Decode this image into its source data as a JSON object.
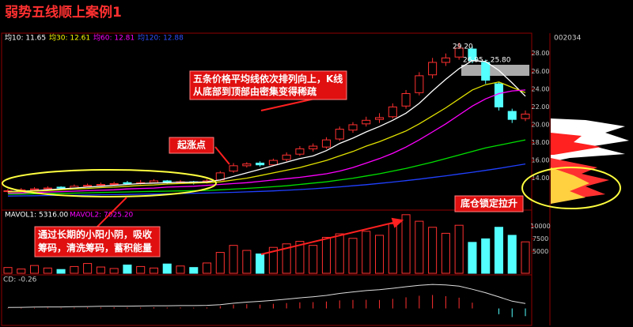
{
  "chart_data": {
    "type": "candlestick",
    "title": "弱势五线顺上案例1",
    "stock_code": "002034",
    "ma_labels": [
      {
        "text": "均10: 11.65",
        "color": "#ffffff"
      },
      {
        "text": "均30: 12.61",
        "color": "#ffff00"
      },
      {
        "text": "均60: 12.81",
        "color": "#ff00ff"
      },
      {
        "text": "均120: 12.88",
        "color": "#3050ff"
      }
    ],
    "annotations": [
      "五条价格平均线依次排列向上，K线从底部到顶部由密集变得稀疏",
      "起涨点",
      "通过长期的小阳小阴，吸收筹码，清洗筹码，蓄积能量",
      "底仓锁定拉升"
    ],
    "price_marks": [
      "29.20",
      "26.95 - 25.80"
    ],
    "open": [
      12.5,
      12.6,
      12.7,
      12.8,
      13.0,
      12.9,
      13.1,
      13.2,
      13.3,
      13.5,
      13.4,
      13.5,
      13.7,
      13.5,
      13.6,
      13.5,
      13.8,
      14.8,
      15.4,
      15.7,
      15.5,
      16.1,
      16.7,
      17.3,
      17.5,
      18.4,
      19.4,
      20.1,
      20.6,
      20.9,
      22.1,
      23.6,
      25.6,
      27.0,
      27.6,
      28.5,
      27.0,
      24.6,
      21.5,
      20.7
    ],
    "close": [
      12.6,
      12.7,
      12.8,
      12.9,
      12.9,
      13.1,
      13.2,
      13.3,
      13.4,
      13.4,
      13.5,
      13.7,
      13.5,
      13.6,
      13.5,
      13.7,
      14.6,
      15.4,
      15.6,
      15.5,
      16.0,
      16.6,
      17.3,
      17.6,
      18.3,
      19.5,
      20.0,
      20.5,
      20.8,
      22.0,
      23.5,
      25.5,
      27.0,
      27.5,
      28.6,
      27.2,
      25.0,
      22.0,
      20.6,
      21.2
    ],
    "high": [
      12.8,
      12.9,
      13.0,
      13.1,
      13.1,
      13.3,
      13.4,
      13.5,
      13.6,
      13.7,
      13.8,
      13.9,
      13.8,
      13.8,
      13.7,
      13.9,
      14.8,
      15.7,
      15.8,
      15.9,
      16.2,
      16.9,
      17.6,
      17.9,
      18.6,
      19.8,
      20.3,
      20.9,
      21.3,
      22.4,
      23.9,
      25.9,
      27.5,
      28.0,
      29.2,
      28.8,
      27.3,
      24.8,
      21.8,
      21.6
    ],
    "low": [
      12.4,
      12.5,
      12.6,
      12.7,
      12.8,
      12.8,
      13.0,
      13.1,
      13.2,
      13.3,
      13.3,
      13.4,
      13.4,
      13.4,
      13.3,
      13.4,
      13.7,
      14.6,
      15.2,
      15.3,
      15.4,
      15.9,
      16.5,
      17.0,
      17.3,
      18.2,
      19.1,
      19.8,
      20.2,
      20.7,
      21.8,
      23.3,
      25.2,
      26.6,
      27.3,
      26.9,
      24.6,
      21.6,
      20.2,
      20.4
    ],
    "ma": [
      {
        "color": "#ffffff",
        "values": [
          12.5,
          12.55,
          12.6,
          12.7,
          12.8,
          12.9,
          13.0,
          13.1,
          13.2,
          13.3,
          13.4,
          13.45,
          13.5,
          13.55,
          13.55,
          13.6,
          13.8,
          14.2,
          14.6,
          15.0,
          15.4,
          15.8,
          16.2,
          16.5,
          17.1,
          17.9,
          18.5,
          19.2,
          19.8,
          20.5,
          21.3,
          22.4,
          23.8,
          25.1,
          26.3,
          27.2,
          27.1,
          26.1,
          24.7,
          23.2
        ]
      },
      {
        "color": "#e0e000",
        "values": [
          12.45,
          12.5,
          12.55,
          12.6,
          12.7,
          12.8,
          12.85,
          12.95,
          13.0,
          13.1,
          13.2,
          13.25,
          13.35,
          13.4,
          13.45,
          13.5,
          13.6,
          13.8,
          14.0,
          14.3,
          14.6,
          14.9,
          15.2,
          15.6,
          16.0,
          16.5,
          17.0,
          17.6,
          18.1,
          18.7,
          19.3,
          20.1,
          21.0,
          21.9,
          22.9,
          23.9,
          24.5,
          24.8,
          24.2,
          23.6
        ]
      },
      {
        "color": "#ff00ff",
        "values": [
          12.3,
          12.35,
          12.4,
          12.45,
          12.5,
          12.55,
          12.6,
          12.65,
          12.7,
          12.8,
          12.85,
          12.9,
          13.0,
          13.05,
          13.1,
          13.2,
          13.3,
          13.4,
          13.5,
          13.65,
          13.8,
          13.95,
          14.1,
          14.3,
          14.5,
          14.8,
          15.2,
          15.7,
          16.2,
          16.8,
          17.5,
          18.3,
          19.2,
          20.1,
          21.1,
          22.1,
          22.9,
          23.5,
          23.8,
          23.9
        ]
      },
      {
        "color": "#00e000",
        "values": [
          12.2,
          12.22,
          12.25,
          12.28,
          12.3,
          12.33,
          12.36,
          12.4,
          12.43,
          12.46,
          12.5,
          12.52,
          12.55,
          12.58,
          12.6,
          12.63,
          12.7,
          12.78,
          12.86,
          12.95,
          13.05,
          13.15,
          13.3,
          13.45,
          13.6,
          13.8,
          14.0,
          14.25,
          14.5,
          14.8,
          15.1,
          15.45,
          15.8,
          16.2,
          16.6,
          17.0,
          17.4,
          17.7,
          18.0,
          18.3
        ]
      },
      {
        "color": "#2040ff",
        "values": [
          12.0,
          12.02,
          12.04,
          12.06,
          12.08,
          12.1,
          12.12,
          12.14,
          12.16,
          12.18,
          12.2,
          12.22,
          12.25,
          12.28,
          12.31,
          12.34,
          12.38,
          12.42,
          12.47,
          12.52,
          12.58,
          12.65,
          12.73,
          12.82,
          12.92,
          13.03,
          13.15,
          13.28,
          13.42,
          13.57,
          13.73,
          13.9,
          14.08,
          14.27,
          14.47,
          14.67,
          14.88,
          15.1,
          15.35,
          15.6
        ]
      }
    ],
    "ylim": [
      10.6,
      30.1
    ],
    "yticks": [
      {
        "value": 14,
        "label": "14.00"
      },
      {
        "value": 16,
        "label": "16.00"
      },
      {
        "value": 18,
        "label": "18.00"
      },
      {
        "value": 20,
        "label": "20.00"
      },
      {
        "value": 22,
        "label": "22.00"
      },
      {
        "value": 24,
        "label": "24.00"
      },
      {
        "value": 26,
        "label": "26.00"
      },
      {
        "value": 28,
        "label": "28.00"
      }
    ],
    "volume_labels": [
      {
        "text": "MAVOL1: 5316.00",
        "color": "#ffffff"
      },
      {
        "text": "MAVOL2: 7025.20",
        "color": "#ff00ff"
      }
    ],
    "volume": [
      1800,
      1500,
      2200,
      1700,
      1400,
      2000,
      2600,
      1900,
      1600,
      2300,
      2000,
      1700,
      2500,
      2100,
      1800,
      2700,
      4800,
      6200,
      5200,
      4500,
      5800,
      6500,
      7000,
      6200,
      7800,
      8500,
      7600,
      9000,
      8200,
      10500,
      12300,
      11000,
      9800,
      8600,
      10200,
      6800,
      7500,
      9800,
      8200,
      6900
    ],
    "vol_ylim": [
      650,
      12900
    ],
    "vol_yticks": [
      5000,
      7500,
      10000
    ],
    "macd_label": "CD: -0.26",
    "macd_hist": [
      0.02,
      0.03,
      0.03,
      0.04,
      0.03,
      0.04,
      0.05,
      0.05,
      0.06,
      0.05,
      0.05,
      0.06,
      0.05,
      0.05,
      0.04,
      0.05,
      0.12,
      0.2,
      0.22,
      0.2,
      0.24,
      0.28,
      0.32,
      0.33,
      0.36,
      0.42,
      0.44,
      0.45,
      0.44,
      0.5,
      0.58,
      0.66,
      0.7,
      0.64,
      0.56,
      0.3,
      0.0,
      -0.3,
      -0.45,
      -0.4
    ],
    "macd_dif": [
      0.05,
      0.06,
      0.07,
      0.08,
      0.08,
      0.09,
      0.1,
      0.11,
      0.12,
      0.12,
      0.13,
      0.14,
      0.14,
      0.15,
      0.15,
      0.16,
      0.2,
      0.27,
      0.33,
      0.37,
      0.42,
      0.48,
      0.55,
      0.61,
      0.68,
      0.78,
      0.86,
      0.93,
      0.98,
      1.05,
      1.13,
      1.2,
      1.25,
      1.22,
      1.16,
      1.0,
      0.82,
      0.6,
      0.38,
      0.26
    ],
    "macd_ylim": [
      -0.8,
      1.5
    ],
    "up_color": "#ff3030",
    "down_color": "#54ffff"
  }
}
